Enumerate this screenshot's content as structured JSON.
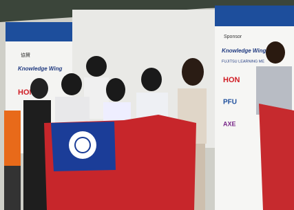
{
  "left_banner": {
    "label": "協賛",
    "logo": "Knowledge Wing",
    "sponsor": "HON"
  },
  "right_banner": {
    "heading": "Sponsor",
    "logo": "Knowledge Wing",
    "subtitle": "FUJITSU LEARNING ME",
    "sponsors": [
      "HON",
      "PFU",
      "AXE"
    ]
  }
}
